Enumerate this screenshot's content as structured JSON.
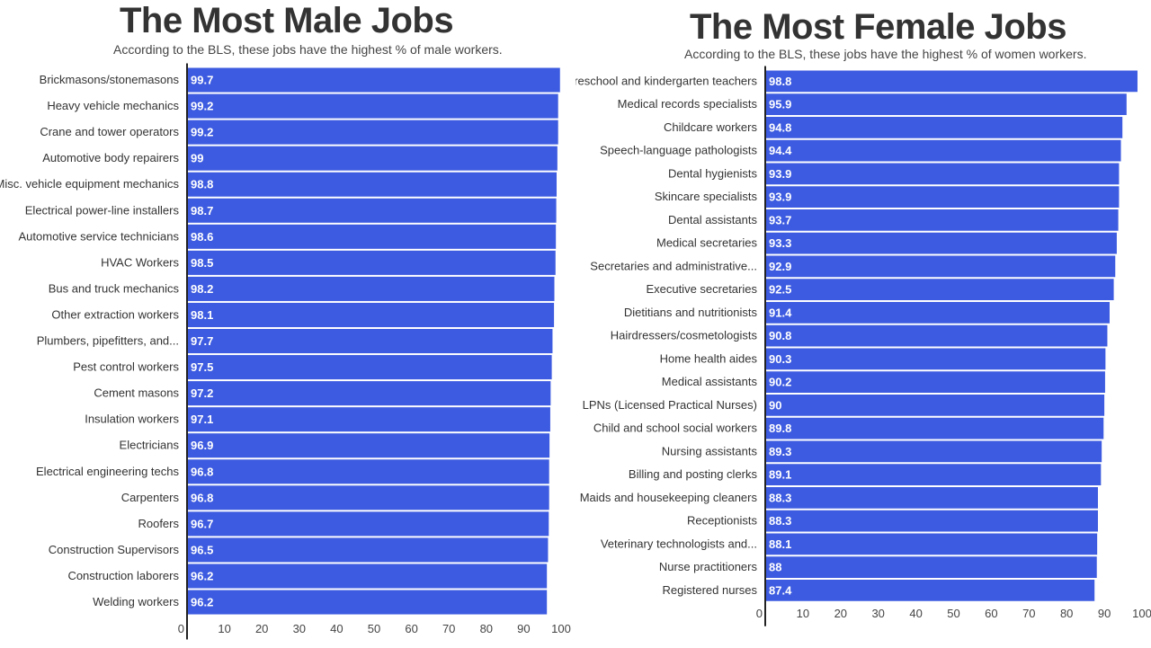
{
  "chart_data": [
    {
      "type": "bar",
      "orientation": "horizontal",
      "title": "The Most Male Jobs",
      "subtitle": "According to the BLS, these jobs have the highest % of male workers.",
      "categories": [
        "Brickmasons/stonemasons",
        "Heavy vehicle mechanics",
        "Crane and tower operators",
        "Automotive body repairers",
        "Misc. vehicle equipment mechanics",
        "Electrical power-line installers",
        "Automotive service technicians",
        "HVAC Workers",
        "Bus and truck mechanics",
        "Other extraction workers",
        "Plumbers, pipefitters, and...",
        "Pest control workers",
        "Cement masons",
        "Insulation workers",
        "Electricians",
        "Electrical engineering techs",
        "Carpenters",
        "Roofers",
        "Construction Supervisors",
        "Construction laborers",
        "Welding workers"
      ],
      "values": [
        99.7,
        99.2,
        99.2,
        99,
        98.8,
        98.7,
        98.6,
        98.5,
        98.2,
        98.1,
        97.7,
        97.5,
        97.2,
        97.1,
        96.9,
        96.8,
        96.8,
        96.7,
        96.5,
        96.2,
        96.2
      ],
      "value_labels": [
        "99.7",
        "99.2",
        "99.2",
        "99",
        "98.8",
        "98.7",
        "98.6",
        "98.5",
        "98.2",
        "98.1",
        "97.7",
        "97.5",
        "97.2",
        "97.1",
        "96.9",
        "96.8",
        "96.8",
        "96.7",
        "96.5",
        "96.2",
        "96.2"
      ],
      "xticks": [
        "0",
        "10",
        "20",
        "30",
        "40",
        "50",
        "60",
        "70",
        "80",
        "90",
        "100"
      ],
      "xlim": [
        0,
        100
      ],
      "bar_color": "#3d5be0",
      "grid": false,
      "legend": "none"
    },
    {
      "type": "bar",
      "orientation": "horizontal",
      "title": "The Most Female Jobs",
      "subtitle": "According to the BLS, these jobs have the highest % of women workers.",
      "categories": [
        "Preschool and kindergarten teachers",
        "Medical records specialists",
        "Childcare workers",
        "Speech-language pathologists",
        "Dental hygienists",
        "Skincare specialists",
        "Dental assistants",
        "Medical secretaries",
        "Secretaries and administrative...",
        "Executive secretaries",
        "Dietitians and nutritionists",
        "Hairdressers/cosmetologists",
        "Home health aides",
        "Medical assistants",
        "LPNs (Licensed Practical Nurses)",
        "Child and school social workers",
        "Nursing assistants",
        "Billing and posting clerks",
        "Maids and housekeeping cleaners",
        "Receptionists",
        "Veterinary technologists and...",
        "Nurse practitioners",
        "Registered nurses"
      ],
      "values": [
        98.8,
        95.9,
        94.8,
        94.4,
        93.9,
        93.9,
        93.7,
        93.3,
        92.9,
        92.5,
        91.4,
        90.8,
        90.3,
        90.2,
        90,
        89.8,
        89.3,
        89.1,
        88.3,
        88.3,
        88.1,
        88,
        87.4
      ],
      "value_labels": [
        "98.8",
        "95.9",
        "94.8",
        "94.4",
        "93.9",
        "93.9",
        "93.7",
        "93.3",
        "92.9",
        "92.5",
        "91.4",
        "90.8",
        "90.3",
        "90.2",
        "90",
        "89.8",
        "89.3",
        "89.1",
        "88.3",
        "88.3",
        "88.1",
        "88",
        "87.4"
      ],
      "xticks": [
        "0",
        "10",
        "20",
        "30",
        "40",
        "50",
        "60",
        "70",
        "80",
        "90",
        "100"
      ],
      "xlim": [
        0,
        100
      ],
      "bar_color": "#3d5be0",
      "grid": false,
      "legend": "none"
    }
  ]
}
